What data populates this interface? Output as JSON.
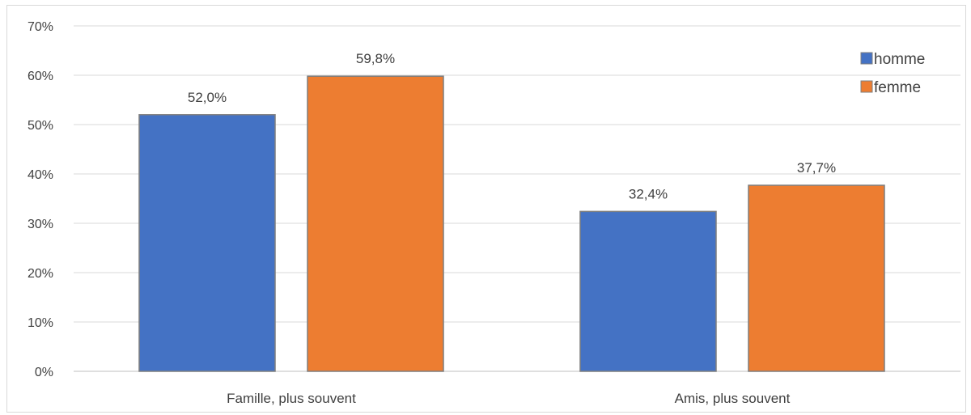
{
  "chart_data": {
    "type": "bar",
    "categories": [
      "Famille, plus souvent",
      "Amis, plus souvent"
    ],
    "series": [
      {
        "name": "homme",
        "values": [
          52.0,
          32.4
        ],
        "labels": [
          "52,0%",
          "32,4%"
        ],
        "color": "#4472c4"
      },
      {
        "name": "femme",
        "values": [
          59.8,
          37.7
        ],
        "labels": [
          "59,8%",
          "37,7%"
        ],
        "color": "#ed7d31"
      }
    ],
    "ylim": [
      0,
      70
    ],
    "yticks": [
      0,
      10,
      20,
      30,
      40,
      50,
      60,
      70
    ],
    "ytick_labels": [
      "0%",
      "10%",
      "20%",
      "30%",
      "40%",
      "50%",
      "60%",
      "70%"
    ],
    "grid": true,
    "legend": "top-right",
    "title": "",
    "xlabel": "",
    "ylabel": ""
  }
}
